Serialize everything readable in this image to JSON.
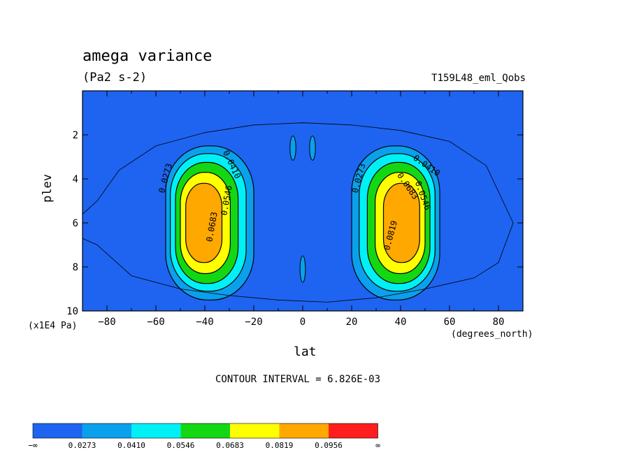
{
  "chart_data": {
    "type": "contour",
    "title": "amega variance",
    "units": "(Pa2 s-2)",
    "run_label": "T159L48_eml_Qobs",
    "xlabel": "lat",
    "x_units": "(degrees_north)",
    "ylabel": "plev",
    "y_units": "(x1E4 Pa)",
    "xlim": [
      -90,
      90
    ],
    "ylim": [
      0,
      10
    ],
    "y_inverted": true,
    "x_ticks": [
      -80,
      -60,
      -40,
      -20,
      0,
      20,
      40,
      60,
      80
    ],
    "x_tick_labels": [
      "−80",
      "−60",
      "−40",
      "−20",
      "0",
      "20",
      "40",
      "60",
      "80"
    ],
    "y_ticks": [
      2,
      4,
      6,
      8,
      10
    ],
    "y_tick_labels": [
      "2",
      "4",
      "6",
      "8",
      "10"
    ],
    "contour_interval_text": "CONTOUR INTERVAL = 6.826E-03",
    "contour_interval": 0.006826,
    "contour_labels": [
      "0.0273",
      "0.0410",
      "0.0546",
      "0.0683",
      "0.0819"
    ],
    "maxima": [
      {
        "lat": -38,
        "plev": 5.5,
        "value": 0.085
      },
      {
        "lat": 38,
        "plev": 5.5,
        "value": 0.09
      }
    ],
    "colorbar": {
      "bounds": [
        "−∞",
        "0.0273",
        "0.0410",
        "0.0546",
        "0.0683",
        "0.0819",
        "0.0956",
        "∞"
      ],
      "colors": [
        "#1e64f0",
        "#0aa0ec",
        "#00f0f5",
        "#14d714",
        "#ffff00",
        "#ffa800",
        "#ff1e1e"
      ]
    }
  }
}
